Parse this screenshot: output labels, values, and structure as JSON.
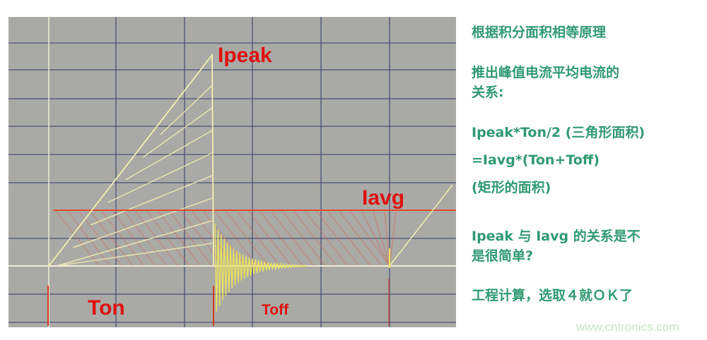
{
  "diagram": {
    "labels": {
      "ipeak": "Ipeak",
      "iavg": "Iavg",
      "ton": "Ton",
      "toff": "Toff"
    },
    "colors": {
      "screen": "#a9aaa6",
      "grid": "#2a2f6a",
      "waveform": "#f2eea0",
      "annotation": "#e01010",
      "text": "#2f9a70"
    }
  },
  "notes": {
    "line1": "根据积分面积相等原理",
    "line2": "推出峰值电流平均电流的",
    "line3": "关系:",
    "line4": "Ipeak*Ton/2 (三角形面积)",
    "line5": "=Iavg*(Ton+Toff)",
    "line6": "(矩形的面积)",
    "line7": "Ipeak 与 Iavg 的关系是不",
    "line8": "是很简单?",
    "line9": "工程计算，选取４就ＯＫ了"
  },
  "watermark": "www.cntronics.com"
}
